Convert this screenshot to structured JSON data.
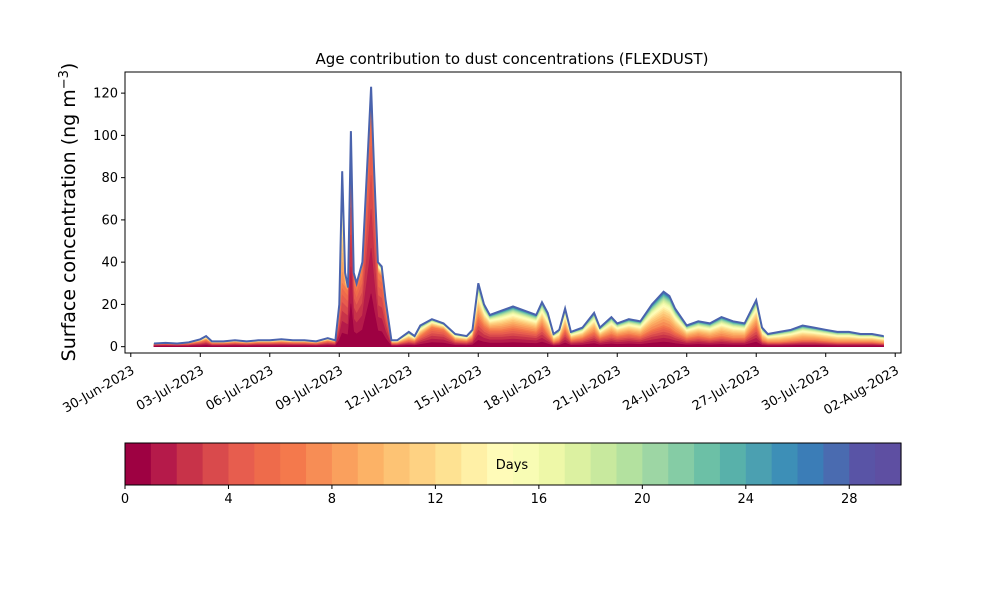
{
  "chart_data": {
    "type": "area",
    "title": "Age contribution to dust concentrations (FLEXDUST)",
    "ylabel": "Surface concentration (ng m",
    "ylabel_sup": "−3",
    "ylabel_close": ")",
    "ylim": [
      -3,
      130
    ],
    "yticks": [
      0,
      20,
      40,
      60,
      80,
      100,
      120
    ],
    "xlim": [
      "2023-06-29T18:00",
      "2023-08-02T06:00"
    ],
    "xticks": [
      "2023-06-30",
      "2023-07-03",
      "2023-07-06",
      "2023-07-09",
      "2023-07-12",
      "2023-07-15",
      "2023-07-18",
      "2023-07-21",
      "2023-07-24",
      "2023-07-27",
      "2023-07-30",
      "2023-08-02"
    ],
    "xtick_labels": [
      "30-Jun-2023",
      "03-Jul-2023",
      "06-Jul-2023",
      "09-Jul-2023",
      "12-Jul-2023",
      "15-Jul-2023",
      "18-Jul-2023",
      "21-Jul-2023",
      "24-Jul-2023",
      "27-Jul-2023",
      "30-Jul-2023",
      "02-Aug-2023"
    ],
    "grid": false,
    "stack_order": "age 0 days at bottom, age 30 days at top",
    "series": [
      {
        "values": [
          [
            "2023-07-01T00:00",
            1.5,
            1.0
          ],
          [
            "2023-07-01T12:00",
            1.8,
            1.2
          ],
          [
            "2023-07-02T00:00",
            1.5,
            1.0
          ],
          [
            "2023-07-02T12:00",
            2.0,
            1.3
          ],
          [
            "2023-07-03T00:00",
            3.5,
            2.2
          ],
          [
            "2023-07-03T06:00",
            5.0,
            3.0
          ],
          [
            "2023-07-03T12:00",
            2.5,
            1.5
          ],
          [
            "2023-07-04T00:00",
            2.5,
            1.5
          ],
          [
            "2023-07-04T12:00",
            3.0,
            1.8
          ],
          [
            "2023-07-05T00:00",
            2.5,
            1.5
          ],
          [
            "2023-07-05T12:00",
            3.0,
            1.8
          ],
          [
            "2023-07-06T00:00",
            3.0,
            1.8
          ],
          [
            "2023-07-06T12:00",
            3.5,
            2.0
          ],
          [
            "2023-07-07T00:00",
            3.0,
            1.8
          ],
          [
            "2023-07-07T12:00",
            3.0,
            1.8
          ],
          [
            "2023-07-08T00:00",
            2.5,
            1.5
          ],
          [
            "2023-07-08T12:00",
            4.0,
            2.5
          ],
          [
            "2023-07-08T20:00",
            3.0,
            2.0
          ],
          [
            "2023-07-09T00:00",
            20.0,
            14.0
          ],
          [
            "2023-07-09T03:00",
            83.0,
            30.0
          ],
          [
            "2023-07-09T06:00",
            35.0,
            28.0
          ],
          [
            "2023-07-09T09:00",
            28.0,
            26.0
          ],
          [
            "2023-07-09T12:00",
            102.0,
            95.0
          ],
          [
            "2023-07-09T15:00",
            35.0,
            33.0
          ],
          [
            "2023-07-09T18:00",
            30.0,
            28.0
          ],
          [
            "2023-07-10T00:00",
            40.0,
            37.0
          ],
          [
            "2023-07-10T06:00",
            95.0,
            90.0
          ],
          [
            "2023-07-10T09:00",
            123.0,
            117.0
          ],
          [
            "2023-07-10T12:00",
            85.0,
            80.0
          ],
          [
            "2023-07-10T16:00",
            40.0,
            35.0
          ],
          [
            "2023-07-10T20:00",
            38.0,
            33.0
          ],
          [
            "2023-07-11T00:00",
            22.0,
            18.0
          ],
          [
            "2023-07-11T06:00",
            3.0,
            1.5
          ],
          [
            "2023-07-11T12:00",
            3.0,
            1.5
          ],
          [
            "2023-07-12T00:00",
            7.0,
            3.0
          ],
          [
            "2023-07-12T06:00",
            5.0,
            2.5
          ],
          [
            "2023-07-12T12:00",
            10.0,
            5.0
          ],
          [
            "2023-07-13T00:00",
            13.0,
            9.0
          ],
          [
            "2023-07-13T12:00",
            11.0,
            8.0
          ],
          [
            "2023-07-14T00:00",
            6.0,
            3.0
          ],
          [
            "2023-07-14T12:00",
            5.0,
            2.5
          ],
          [
            "2023-07-14T18:00",
            8.0,
            4.0
          ],
          [
            "2023-07-15T00:00",
            30.0,
            14.0
          ],
          [
            "2023-07-15T06:00",
            20.0,
            10.0
          ],
          [
            "2023-07-15T12:00",
            15.0,
            8.0
          ],
          [
            "2023-07-16T00:00",
            17.0,
            8.0
          ],
          [
            "2023-07-16T12:00",
            19.0,
            9.0
          ],
          [
            "2023-07-17T00:00",
            17.0,
            8.0
          ],
          [
            "2023-07-17T12:00",
            15.0,
            7.0
          ],
          [
            "2023-07-17T18:00",
            21.0,
            10.0
          ],
          [
            "2023-07-18T00:00",
            16.0,
            6.0
          ],
          [
            "2023-07-18T06:00",
            6.0,
            2.0
          ],
          [
            "2023-07-18T12:00",
            8.0,
            3.0
          ],
          [
            "2023-07-18T18:00",
            18.0,
            8.0
          ],
          [
            "2023-07-19T00:00",
            7.0,
            3.0
          ],
          [
            "2023-07-19T12:00",
            9.0,
            4.0
          ],
          [
            "2023-07-20T00:00",
            16.0,
            7.0
          ],
          [
            "2023-07-20T06:00",
            9.0,
            4.0
          ],
          [
            "2023-07-20T18:00",
            14.0,
            6.0
          ],
          [
            "2023-07-21T00:00",
            11.0,
            5.0
          ],
          [
            "2023-07-21T12:00",
            13.0,
            6.0
          ],
          [
            "2023-07-22T00:00",
            12.0,
            5.0
          ],
          [
            "2023-07-22T12:00",
            20.0,
            8.0
          ],
          [
            "2023-07-23T00:00",
            26.0,
            10.0
          ],
          [
            "2023-07-23T06:00",
            24.0,
            9.0
          ],
          [
            "2023-07-23T12:00",
            18.0,
            7.0
          ],
          [
            "2023-07-24T00:00",
            10.0,
            4.0
          ],
          [
            "2023-07-24T12:00",
            12.0,
            5.0
          ],
          [
            "2023-07-25T00:00",
            11.0,
            4.0
          ],
          [
            "2023-07-25T12:00",
            14.0,
            5.0
          ],
          [
            "2023-07-26T00:00",
            12.0,
            4.0
          ],
          [
            "2023-07-26T12:00",
            11.0,
            4.0
          ],
          [
            "2023-07-27T00:00",
            22.0,
            10.0
          ],
          [
            "2023-07-27T06:00",
            9.0,
            3.0
          ],
          [
            "2023-07-27T12:00",
            6.0,
            2.0
          ],
          [
            "2023-07-28T00:00",
            7.0,
            2.0
          ],
          [
            "2023-07-28T12:00",
            8.0,
            2.5
          ],
          [
            "2023-07-29T00:00",
            10.0,
            3.0
          ],
          [
            "2023-07-29T12:00",
            9.0,
            3.0
          ],
          [
            "2023-07-30T00:00",
            8.0,
            2.5
          ],
          [
            "2023-07-30T12:00",
            7.0,
            2.0
          ],
          [
            "2023-07-31T00:00",
            7.0,
            2.0
          ],
          [
            "2023-07-31T12:00",
            6.0,
            2.0
          ],
          [
            "2023-08-01T00:00",
            6.0,
            2.0
          ],
          [
            "2023-08-01T12:00",
            5.0,
            1.5
          ]
        ]
      }
    ],
    "value_fields": [
      "time",
      "total",
      "age_lt_7_days"
    ],
    "colorbar": {
      "label": "Days",
      "min": 0,
      "max": 30,
      "ticks": [
        0,
        4,
        8,
        12,
        16,
        20,
        24,
        28
      ],
      "colors": [
        "#9e0142",
        "#b51a4a",
        "#c83349",
        "#d94a4c",
        "#e75d4e",
        "#ee6b4b",
        "#f4794c",
        "#f78d55",
        "#faa05d",
        "#fcb266",
        "#fdc374",
        "#fed283",
        "#fee292",
        "#fff0a6",
        "#fffbb8",
        "#f8fcb4",
        "#eef8a8",
        "#dcf1a1",
        "#c8e99e",
        "#b3e19f",
        "#9dd6a4",
        "#85cca5",
        "#6cc0a6",
        "#58b1aa",
        "#4ba0b1",
        "#3d8fb7",
        "#3b7db7",
        "#4a6bb0",
        "#5954a6",
        "#5e4fa2"
      ]
    }
  }
}
